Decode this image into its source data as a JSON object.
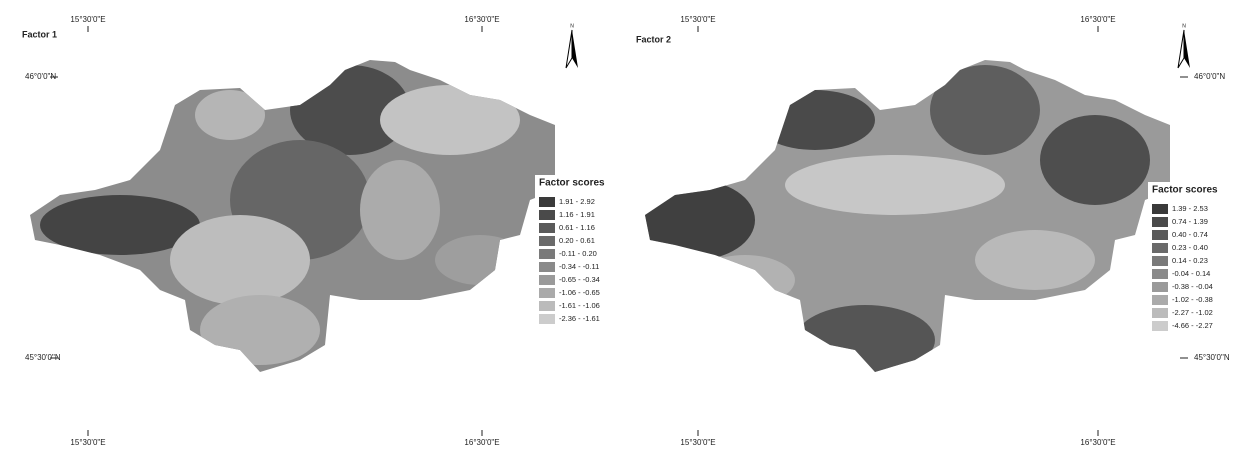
{
  "panels": [
    {
      "title": "Factor 1",
      "lon_labels": [
        "15°30'0\"E",
        "16°30'0\"E"
      ],
      "lat_labels": [
        "46°0'0\"N",
        "45°30'0\"N"
      ],
      "north": "N",
      "legend": {
        "title": "Factor scores",
        "items": [
          {
            "label": "1.91 - 2.92",
            "color": "#3a3a3a"
          },
          {
            "label": "1.16 - 1.91",
            "color": "#4a4a4a"
          },
          {
            "label": "0.61 - 1.16",
            "color": "#5a5a5a"
          },
          {
            "label": "0.20 - 0.61",
            "color": "#6a6a6a"
          },
          {
            "label": "-0.11 - 0.20",
            "color": "#7a7a7a"
          },
          {
            "label": "-0.34 - -0.11",
            "color": "#8a8a8a"
          },
          {
            "label": "-0.65 - -0.34",
            "color": "#9a9a9a"
          },
          {
            "label": "-1.06 - -0.65",
            "color": "#aaaaaa"
          },
          {
            "label": "-1.61 - -1.06",
            "color": "#bbbbbb"
          },
          {
            "label": "-2.36 - -1.61",
            "color": "#cccccc"
          }
        ]
      }
    },
    {
      "title": "Factor 2",
      "lon_labels": [
        "15°30'0\"E",
        "16°30'0\"E"
      ],
      "lat_labels": [
        "46°0'0\"N",
        "45°30'0\"N"
      ],
      "north": "N",
      "legend": {
        "title": "Factor scores",
        "items": [
          {
            "label": "1.39 - 2.53",
            "color": "#3a3a3a"
          },
          {
            "label": "0.74 - 1.39",
            "color": "#4a4a4a"
          },
          {
            "label": "0.40 - 0.74",
            "color": "#5a5a5a"
          },
          {
            "label": "0.23 - 0.40",
            "color": "#6a6a6a"
          },
          {
            "label": "0.14 - 0.23",
            "color": "#7a7a7a"
          },
          {
            "label": "-0.04 - 0.14",
            "color": "#8a8a8a"
          },
          {
            "label": "-0.38 - -0.04",
            "color": "#9a9a9a"
          },
          {
            "label": "-1.02 - -0.38",
            "color": "#aaaaaa"
          },
          {
            "label": "-2.27 - -1.02",
            "color": "#bbbbbb"
          },
          {
            "label": "-4.66 - -2.27",
            "color": "#cccccc"
          }
        ]
      }
    }
  ]
}
